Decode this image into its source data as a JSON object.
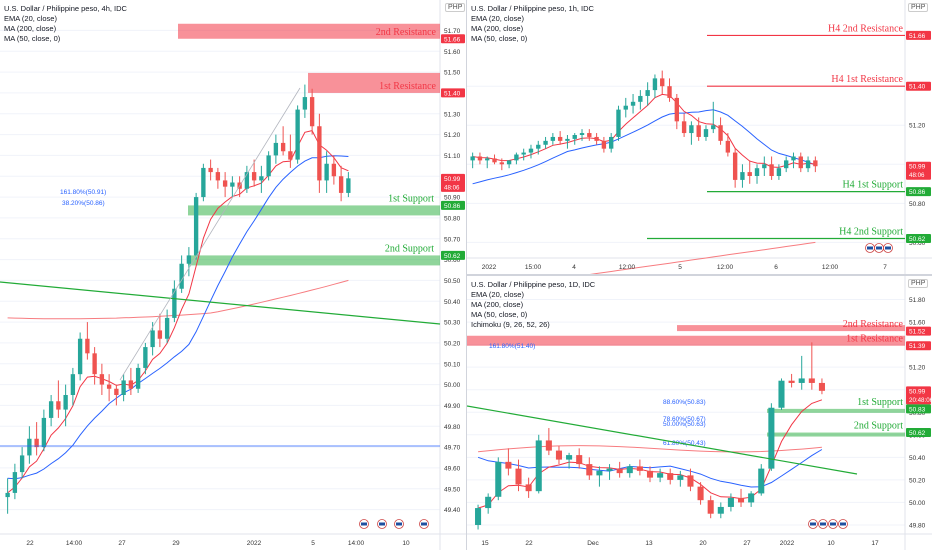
{
  "colors": {
    "up": "#26a69a",
    "down": "#ef5350",
    "resist": "#f23645",
    "support": "#22ab37",
    "ema": "#f23645",
    "ma50": "#2962ff",
    "ma200": "#f77c80",
    "trend": "#22ab37"
  },
  "panels": {
    "left": {
      "symbol": "U.S. Dollar / Philippine peso, 4h, IDC",
      "indicators": [
        "EMA (20, close)",
        "MA (200, close)",
        "MA (50, close, 0)"
      ],
      "currency": "PHP",
      "price_ticks": [
        "51.70",
        "51.60",
        "51.50",
        "51.40",
        "51.30",
        "51.20",
        "51.10",
        "51.00",
        "50.90",
        "50.80",
        "50.70",
        "50.60",
        "50.50",
        "50.40",
        "50.30",
        "50.20",
        "50.10",
        "50.00",
        "49.90",
        "49.80",
        "49.70",
        "49.60",
        "49.50",
        "49.40"
      ],
      "badges": [
        {
          "label": "51.66",
          "price": 51.66,
          "kind": "resist"
        },
        {
          "label": "51.40",
          "price": 51.4,
          "kind": "resist"
        },
        {
          "label": "50.99",
          "sub": "48:06",
          "price": 50.99,
          "kind": "last"
        },
        {
          "label": "50.86",
          "price": 50.86,
          "kind": "support"
        },
        {
          "label": "50.62",
          "price": 50.62,
          "kind": "support"
        }
      ],
      "levels": [
        {
          "label": "2nd Resistance",
          "price": 51.66,
          "kind": "resist"
        },
        {
          "label": "1st Resistance",
          "price": 51.4,
          "kind": "resist"
        },
        {
          "label": "1st Support",
          "price": 50.86,
          "kind": "support"
        },
        {
          "label": "2nd Support",
          "price": 50.62,
          "kind": "support"
        }
      ],
      "fib_labels": [
        "161.80%(50.91)",
        "38.20%(50.86)"
      ],
      "time_ticks": [
        "22",
        "14:00",
        "27",
        "29",
        "2022",
        "5",
        "14:00",
        "10"
      ]
    },
    "top_right": {
      "symbol": "U.S. Dollar / Philippine peso, 1h, IDC",
      "indicators": [
        "EMA (20, close)",
        "MA (200, close)",
        "MA (50, close, 0)"
      ],
      "currency": "PHP",
      "price_ticks": [
        "51.40",
        "51.20",
        "51.00",
        "50.80",
        "50.60"
      ],
      "badges": [
        {
          "label": "51.66",
          "price": 51.66,
          "kind": "resist"
        },
        {
          "label": "51.40",
          "price": 51.4,
          "kind": "resist"
        },
        {
          "label": "50.99",
          "sub": "48:06",
          "price": 50.99,
          "kind": "last"
        },
        {
          "label": "50.86",
          "price": 50.86,
          "kind": "support"
        },
        {
          "label": "50.62",
          "price": 50.62,
          "kind": "support"
        }
      ],
      "levels": [
        {
          "label": "H4 2nd Resistance",
          "price": 51.66,
          "kind": "resist"
        },
        {
          "label": "H4 1st Resistance",
          "price": 51.4,
          "kind": "resist"
        },
        {
          "label": "H4 1st Support",
          "price": 50.86,
          "kind": "support"
        },
        {
          "label": "H4 2nd Support",
          "price": 50.62,
          "kind": "support"
        }
      ],
      "time_ticks": [
        "2022",
        "15:00",
        "4",
        "12:00",
        "5",
        "12:00",
        "6",
        "12:00",
        "7"
      ]
    },
    "bottom_right": {
      "symbol": "U.S. Dollar / Philippine peso, 1D, IDC",
      "indicators": [
        "EMA (20, close)",
        "MA (200, close)",
        "MA (50, close, 0)",
        "Ichimoku (9, 26, 52, 26)"
      ],
      "currency": "PHP",
      "price_ticks": [
        "51.80",
        "51.60",
        "51.40",
        "51.20",
        "51.00",
        "50.80",
        "50.60",
        "50.40",
        "50.20",
        "50.00",
        "49.80"
      ],
      "badges": [
        {
          "label": "51.52",
          "price": 51.52,
          "kind": "resist"
        },
        {
          "label": "51.39",
          "price": 51.39,
          "kind": "resist"
        },
        {
          "label": "50.99",
          "sub": "20:48:06",
          "price": 50.99,
          "kind": "last"
        },
        {
          "label": "50.83",
          "price": 50.83,
          "kind": "support"
        },
        {
          "label": "50.62",
          "price": 50.62,
          "kind": "support"
        }
      ],
      "levels": [
        {
          "label": "2nd Resistance",
          "price": 51.52,
          "kind": "resist"
        },
        {
          "label": "1st Resistance",
          "price": 51.39,
          "kind": "resist"
        },
        {
          "label": "1st Support",
          "price": 50.83,
          "kind": "support"
        },
        {
          "label": "2nd Support",
          "price": 50.62,
          "kind": "support"
        }
      ],
      "fib_labels": [
        "161.80%(51.40)",
        "88.60%(50.83)",
        "78.60%(50.67)",
        "50.00%(50.63)",
        "61.80%(50.43)"
      ],
      "time_ticks": [
        "15",
        "22",
        "Dec",
        "13",
        "20",
        "27",
        "2022",
        "10",
        "17"
      ]
    }
  },
  "chart_data": [
    {
      "type": "candlestick",
      "title": "U.S. Dollar / Philippine peso, 4h, IDC",
      "ylim": [
        49.35,
        51.75
      ],
      "last": 50.99,
      "ohlc": [
        [
          49.46,
          49.55,
          49.38,
          49.48
        ],
        [
          49.48,
          49.62,
          49.45,
          49.58
        ],
        [
          49.58,
          49.7,
          49.55,
          49.66
        ],
        [
          49.66,
          49.8,
          49.62,
          49.74
        ],
        [
          49.74,
          49.82,
          49.66,
          49.7
        ],
        [
          49.7,
          49.88,
          49.68,
          49.84
        ],
        [
          49.84,
          49.95,
          49.8,
          49.92
        ],
        [
          49.92,
          50.02,
          49.84,
          49.88
        ],
        [
          49.88,
          50.0,
          49.8,
          49.95
        ],
        [
          49.95,
          50.08,
          49.9,
          50.05
        ],
        [
          50.05,
          50.25,
          50.02,
          50.22
        ],
        [
          50.22,
          50.3,
          50.12,
          50.15
        ],
        [
          50.15,
          50.18,
          50.0,
          50.05
        ],
        [
          50.05,
          50.1,
          49.95,
          50.0
        ],
        [
          50.0,
          50.05,
          49.92,
          49.98
        ],
        [
          49.98,
          50.0,
          49.9,
          49.95
        ],
        [
          49.95,
          50.05,
          49.92,
          50.02
        ],
        [
          50.02,
          50.08,
          49.95,
          49.98
        ],
        [
          49.98,
          50.1,
          49.96,
          50.08
        ],
        [
          50.08,
          50.2,
          50.05,
          50.18
        ],
        [
          50.18,
          50.3,
          50.14,
          50.26
        ],
        [
          50.26,
          50.34,
          50.18,
          50.22
        ],
        [
          50.22,
          50.36,
          50.2,
          50.32
        ],
        [
          50.32,
          50.5,
          50.3,
          50.46
        ],
        [
          50.46,
          50.62,
          50.44,
          50.58
        ],
        [
          50.58,
          50.66,
          50.52,
          50.62
        ],
        [
          50.62,
          50.92,
          50.6,
          50.9
        ],
        [
          50.9,
          51.06,
          50.88,
          51.04
        ],
        [
          51.04,
          51.08,
          50.98,
          51.02
        ],
        [
          51.02,
          51.04,
          50.94,
          50.98
        ],
        [
          50.98,
          51.02,
          50.9,
          50.95
        ],
        [
          50.95,
          51.0,
          50.9,
          50.97
        ],
        [
          50.97,
          51.0,
          50.9,
          50.94
        ],
        [
          50.94,
          51.05,
          50.92,
          51.02
        ],
        [
          51.02,
          51.08,
          50.95,
          50.98
        ],
        [
          50.98,
          51.05,
          50.92,
          51.0
        ],
        [
          51.0,
          51.12,
          50.98,
          51.1
        ],
        [
          51.1,
          51.2,
          51.06,
          51.16
        ],
        [
          51.16,
          51.24,
          51.1,
          51.12
        ],
        [
          51.12,
          51.2,
          51.04,
          51.08
        ],
        [
          51.08,
          51.34,
          51.06,
          51.32
        ],
        [
          51.32,
          51.44,
          51.28,
          51.38
        ],
        [
          51.38,
          51.42,
          51.2,
          51.24
        ],
        [
          51.24,
          51.3,
          50.92,
          50.98
        ],
        [
          50.98,
          51.12,
          50.92,
          51.06
        ],
        [
          51.06,
          51.1,
          50.96,
          51.0
        ],
        [
          51.0,
          51.05,
          50.88,
          50.92
        ],
        [
          50.92,
          51.02,
          50.9,
          50.99
        ]
      ]
    },
    {
      "type": "candlestick",
      "title": "U.S. Dollar / Philippine peso, 1h, IDC",
      "ylim": [
        50.52,
        51.78
      ],
      "last": 50.99,
      "ohlc": [
        [
          51.02,
          51.06,
          50.98,
          51.04
        ],
        [
          51.04,
          51.06,
          51.0,
          51.02
        ],
        [
          51.02,
          51.04,
          50.98,
          51.03
        ],
        [
          51.03,
          51.05,
          51.0,
          51.01
        ],
        [
          51.01,
          51.03,
          50.97,
          51.0
        ],
        [
          51.0,
          51.02,
          50.98,
          51.02
        ],
        [
          51.02,
          51.06,
          51.0,
          51.05
        ],
        [
          51.05,
          51.08,
          51.02,
          51.06
        ],
        [
          51.06,
          51.1,
          51.03,
          51.08
        ],
        [
          51.08,
          51.12,
          51.05,
          51.1
        ],
        [
          51.1,
          51.14,
          51.08,
          51.12
        ],
        [
          51.12,
          51.16,
          51.1,
          51.14
        ],
        [
          51.14,
          51.17,
          51.1,
          51.12
        ],
        [
          51.12,
          51.15,
          51.08,
          51.13
        ],
        [
          51.13,
          51.16,
          51.1,
          51.15
        ],
        [
          51.15,
          51.18,
          51.12,
          51.16
        ],
        [
          51.16,
          51.18,
          51.12,
          51.14
        ],
        [
          51.14,
          51.16,
          51.1,
          51.12
        ],
        [
          51.12,
          51.14,
          51.06,
          51.08
        ],
        [
          51.08,
          51.16,
          51.06,
          51.14
        ],
        [
          51.14,
          51.3,
          51.12,
          51.28
        ],
        [
          51.28,
          51.34,
          51.24,
          51.3
        ],
        [
          51.3,
          51.36,
          51.26,
          51.32
        ],
        [
          51.32,
          51.38,
          51.28,
          51.35
        ],
        [
          51.35,
          51.42,
          51.3,
          51.38
        ],
        [
          51.38,
          51.46,
          51.34,
          51.44
        ],
        [
          51.44,
          51.48,
          51.36,
          51.4
        ],
        [
          51.4,
          51.44,
          51.32,
          51.34
        ],
        [
          51.34,
          51.36,
          51.18,
          51.22
        ],
        [
          51.22,
          51.26,
          51.14,
          51.16
        ],
        [
          51.16,
          51.22,
          51.1,
          51.2
        ],
        [
          51.2,
          51.24,
          51.12,
          51.14
        ],
        [
          51.14,
          51.2,
          51.12,
          51.18
        ],
        [
          51.18,
          51.32,
          51.16,
          51.2
        ],
        [
          51.2,
          51.24,
          51.1,
          51.12
        ],
        [
          51.12,
          51.16,
          51.04,
          51.06
        ],
        [
          51.06,
          51.08,
          50.88,
          50.92
        ],
        [
          50.92,
          51.0,
          50.88,
          50.96
        ],
        [
          50.96,
          51.02,
          50.9,
          50.94
        ],
        [
          50.94,
          51.0,
          50.9,
          50.98
        ],
        [
          50.98,
          51.04,
          50.94,
          51.0
        ],
        [
          51.0,
          51.04,
          50.92,
          50.94
        ],
        [
          50.94,
          51.0,
          50.92,
          50.98
        ],
        [
          50.98,
          51.04,
          50.96,
          51.02
        ],
        [
          51.02,
          51.06,
          50.98,
          51.04
        ],
        [
          51.04,
          51.06,
          50.96,
          50.98
        ],
        [
          50.98,
          51.04,
          50.96,
          51.02
        ],
        [
          51.02,
          51.04,
          50.96,
          50.99
        ]
      ]
    },
    {
      "type": "candlestick",
      "title": "U.S. Dollar / Philippine peso, 1D, IDC",
      "ylim": [
        49.72,
        51.92
      ],
      "last": 50.99,
      "ohlc": [
        [
          49.8,
          49.98,
          49.76,
          49.95
        ],
        [
          49.95,
          50.08,
          49.9,
          50.05
        ],
        [
          50.05,
          50.4,
          50.02,
          50.36
        ],
        [
          50.36,
          50.48,
          50.24,
          50.3
        ],
        [
          50.3,
          50.38,
          50.1,
          50.16
        ],
        [
          50.16,
          50.22,
          50.04,
          50.1
        ],
        [
          50.1,
          50.6,
          50.08,
          50.55
        ],
        [
          50.55,
          50.66,
          50.42,
          50.46
        ],
        [
          50.46,
          50.5,
          50.34,
          50.38
        ],
        [
          50.38,
          50.44,
          50.3,
          50.42
        ],
        [
          50.42,
          50.48,
          50.3,
          50.34
        ],
        [
          50.34,
          50.4,
          50.2,
          50.24
        ],
        [
          50.24,
          50.32,
          50.14,
          50.28
        ],
        [
          50.28,
          50.34,
          50.2,
          50.3
        ],
        [
          50.3,
          50.36,
          50.22,
          50.26
        ],
        [
          50.26,
          50.34,
          50.22,
          50.32
        ],
        [
          50.32,
          50.38,
          50.24,
          50.28
        ],
        [
          50.28,
          50.32,
          50.18,
          50.22
        ],
        [
          50.22,
          50.3,
          50.18,
          50.26
        ],
        [
          50.26,
          50.3,
          50.16,
          50.2
        ],
        [
          50.2,
          50.28,
          50.14,
          50.24
        ],
        [
          50.24,
          50.3,
          50.1,
          50.14
        ],
        [
          50.14,
          50.18,
          49.98,
          50.02
        ],
        [
          50.02,
          50.06,
          49.86,
          49.9
        ],
        [
          49.9,
          50.0,
          49.86,
          49.96
        ],
        [
          49.96,
          50.08,
          49.92,
          50.04
        ],
        [
          50.04,
          50.12,
          49.96,
          50.0
        ],
        [
          50.0,
          50.1,
          49.96,
          50.08
        ],
        [
          50.08,
          50.34,
          50.06,
          50.3
        ],
        [
          50.3,
          50.88,
          50.28,
          50.84
        ],
        [
          50.84,
          51.1,
          50.82,
          51.08
        ],
        [
          51.08,
          51.14,
          51.02,
          51.06
        ],
        [
          51.06,
          51.3,
          51.0,
          51.1
        ],
        [
          51.1,
          51.42,
          51.0,
          51.06
        ],
        [
          51.06,
          51.1,
          50.96,
          50.99
        ]
      ]
    }
  ]
}
